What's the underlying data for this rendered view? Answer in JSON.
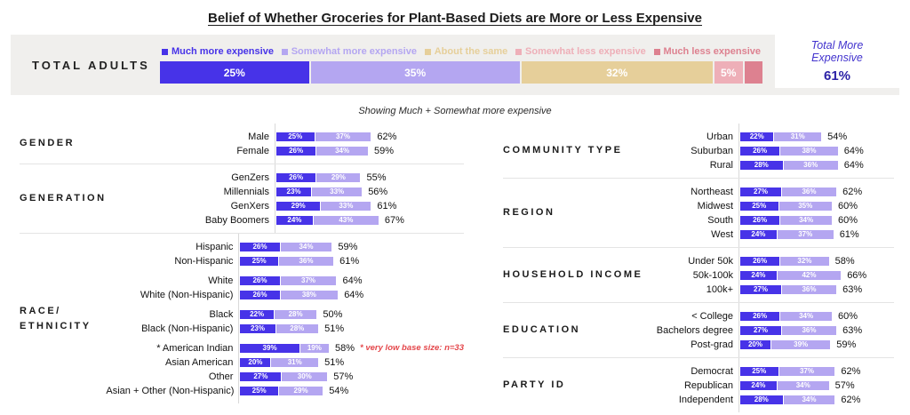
{
  "title": "Belief of Whether Groceries for Plant-Based Diets are More or Less Expensive",
  "subtitle": "Showing Much + Somewhat more expensive",
  "colors": {
    "much_more": "#4733E8",
    "somewhat_more": "#B4A6F1",
    "about_same": "#E6CF9A",
    "somewhat_less": "#EEAFB8",
    "much_less": "#DD8190",
    "panel_bg": "#F0EFED",
    "accent_blue_italic": "#4334CE",
    "accent_blue_value": "#2C22A6",
    "note_red": "#E4474B"
  },
  "total_adults": {
    "label": "TOTAL ADULTS",
    "total_more_label": "Total More\nExpensive",
    "total_more_value": "61%"
  },
  "chart_data": {
    "type": "bar",
    "title": "Belief of Whether Groceries for Plant-Based Diets are More or Less Expensive",
    "subtitle": "Showing Much + Somewhat more expensive",
    "legend_position": "top",
    "legend": [
      {
        "label": "Much more expensive",
        "color": "#4733E8"
      },
      {
        "label": "Somewhat more expensive",
        "color": "#B4A6F1"
      },
      {
        "label": "About the same",
        "color": "#E6CF9A"
      },
      {
        "label": "Somewhat less expensive",
        "color": "#EEAFB8"
      },
      {
        "label": "Much less expensive",
        "color": "#DD8190"
      }
    ],
    "total_bar": {
      "category": "TOTAL ADULTS",
      "values": [
        25,
        35,
        32,
        5,
        3
      ],
      "display": [
        "25%",
        "35%",
        "32%",
        "5%",
        ""
      ],
      "total_more_expensive": 61
    },
    "breakdown_series": [
      "Much more expensive",
      "Somewhat more expensive"
    ],
    "left_sections": [
      {
        "name": "GENDER",
        "groups": [
          [
            {
              "label": "Male",
              "values": [
                25,
                37
              ],
              "total": 62
            },
            {
              "label": "Female",
              "values": [
                26,
                34
              ],
              "total": 59
            }
          ]
        ]
      },
      {
        "name": "GENERATION",
        "groups": [
          [
            {
              "label": "GenZers",
              "values": [
                26,
                29
              ],
              "total": 55
            },
            {
              "label": "Millennials",
              "values": [
                23,
                33
              ],
              "total": 56
            },
            {
              "label": "GenXers",
              "values": [
                29,
                33
              ],
              "total": 61
            },
            {
              "label": "Baby Boomers",
              "values": [
                24,
                43
              ],
              "total": 67
            }
          ]
        ]
      },
      {
        "name": "RACE/\nETHNICITY",
        "groups": [
          [
            {
              "label": "Hispanic",
              "values": [
                26,
                34
              ],
              "total": 59
            },
            {
              "label": "Non-Hispanic",
              "values": [
                25,
                36
              ],
              "total": 61
            }
          ],
          [
            {
              "label": "White",
              "values": [
                26,
                37
              ],
              "total": 64
            },
            {
              "label": "White (Non-Hispanic)",
              "values": [
                26,
                38
              ],
              "total": 64
            }
          ],
          [
            {
              "label": "Black",
              "values": [
                22,
                28
              ],
              "total": 50
            },
            {
              "label": "Black (Non-Hispanic)",
              "values": [
                23,
                28
              ],
              "total": 51
            }
          ],
          [
            {
              "label": "* American Indian",
              "values": [
                39,
                19
              ],
              "total": 58,
              "note": "* very low base size: n=33"
            },
            {
              "label": "Asian American",
              "values": [
                20,
                31
              ],
              "total": 51
            },
            {
              "label": "Other",
              "values": [
                27,
                30
              ],
              "total": 57
            },
            {
              "label": "Asian + Other (Non-Hispanic)",
              "values": [
                25,
                29
              ],
              "total": 54
            }
          ]
        ]
      }
    ],
    "right_sections": [
      {
        "name": "COMMUNITY TYPE",
        "groups": [
          [
            {
              "label": "Urban",
              "values": [
                22,
                31
              ],
              "total": 54
            },
            {
              "label": "Suburban",
              "values": [
                26,
                38
              ],
              "total": 64
            },
            {
              "label": "Rural",
              "values": [
                28,
                36
              ],
              "total": 64
            }
          ]
        ]
      },
      {
        "name": "REGION",
        "groups": [
          [
            {
              "label": "Northeast",
              "values": [
                27,
                36
              ],
              "total": 62
            },
            {
              "label": "Midwest",
              "values": [
                25,
                35
              ],
              "total": 60
            },
            {
              "label": "South",
              "values": [
                26,
                34
              ],
              "total": 60
            },
            {
              "label": "West",
              "values": [
                24,
                37
              ],
              "total": 61
            }
          ]
        ]
      },
      {
        "name": "HOUSEHOLD INCOME",
        "groups": [
          [
            {
              "label": "Under 50k",
              "values": [
                26,
                32
              ],
              "total": 58
            },
            {
              "label": "50k-100k",
              "values": [
                24,
                42
              ],
              "total": 66
            },
            {
              "label": "100k+",
              "values": [
                27,
                36
              ],
              "total": 63
            }
          ]
        ]
      },
      {
        "name": "EDUCATION",
        "groups": [
          [
            {
              "label": "< College",
              "values": [
                26,
                34
              ],
              "total": 60
            },
            {
              "label": "Bachelors degree",
              "values": [
                27,
                36
              ],
              "total": 63
            },
            {
              "label": "Post-grad",
              "values": [
                20,
                39
              ],
              "total": 59
            }
          ]
        ]
      },
      {
        "name": "PARTY ID",
        "groups": [
          [
            {
              "label": "Democrat",
              "values": [
                25,
                37
              ],
              "total": 62
            },
            {
              "label": "Republican",
              "values": [
                24,
                34
              ],
              "total": 57
            },
            {
              "label": "Independent",
              "values": [
                28,
                34
              ],
              "total": 62
            }
          ]
        ]
      }
    ]
  }
}
